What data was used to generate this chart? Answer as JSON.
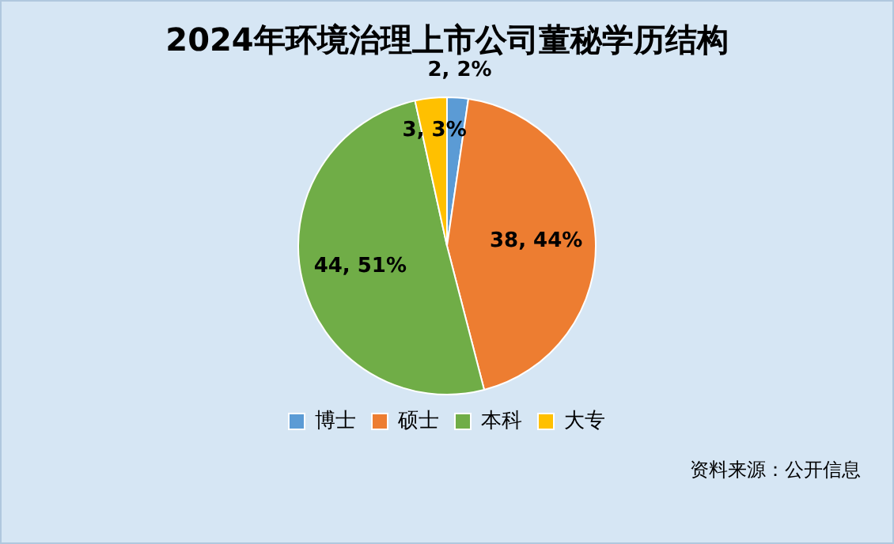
{
  "chart_data": {
    "type": "pie",
    "title": "2024年环境治理上市公司董秘学历结构",
    "categories": [
      "博士",
      "硕士",
      "本科",
      "大专"
    ],
    "values": [
      2,
      38,
      44,
      3
    ],
    "colors": [
      "#5b9bd5",
      "#ed7d31",
      "#70ad47",
      "#ffc000"
    ],
    "value_labels": [
      "2, 2%",
      "38, 44%",
      "44, 51%",
      "3, 3%"
    ],
    "legend": "bottom",
    "annotations": [
      "资料来源：公开信息"
    ]
  }
}
